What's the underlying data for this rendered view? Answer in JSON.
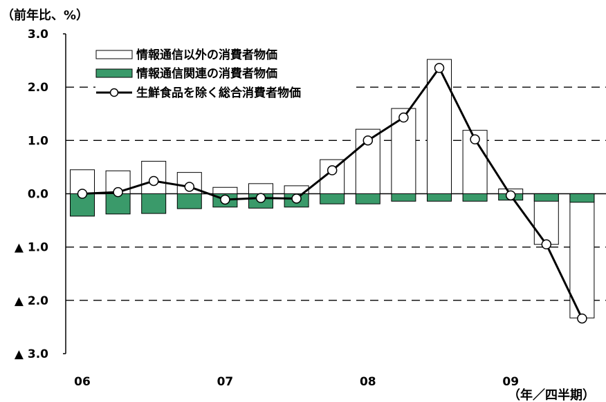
{
  "chart_data": {
    "type": "bar",
    "y_unit_label": "（前年比、%）",
    "x_unit_label": "（年／四半期）",
    "ylim": [
      -3.0,
      3.0
    ],
    "y_ticks": [
      {
        "value": 3.0,
        "label": "3.0"
      },
      {
        "value": 2.0,
        "label": "2.0"
      },
      {
        "value": 1.0,
        "label": "1.0"
      },
      {
        "value": 0.0,
        "label": "0.0"
      },
      {
        "value": -1.0,
        "label": "▲ 1.0"
      },
      {
        "value": -2.0,
        "label": "▲ 2.0"
      },
      {
        "value": -3.0,
        "label": "▲ 3.0"
      }
    ],
    "grid": "horizontal-dashed",
    "legend_position": "top-left",
    "year_labels": [
      {
        "label": "06",
        "quarter_index": 0
      },
      {
        "label": "07",
        "quarter_index": 4
      },
      {
        "label": "08",
        "quarter_index": 8
      },
      {
        "label": "09",
        "quarter_index": 12
      }
    ],
    "x": [
      "06Q1",
      "06Q2",
      "06Q3",
      "06Q4",
      "07Q1",
      "07Q2",
      "07Q3",
      "07Q4",
      "08Q1",
      "08Q2",
      "08Q3",
      "08Q4",
      "09Q1",
      "09Q2",
      "09Q3"
    ],
    "series": [
      {
        "name": "情報通信以外の消費者物価",
        "kind": "bar",
        "fill": "#ffffff",
        "stroke": "#000000",
        "values": [
          0.45,
          0.43,
          0.61,
          0.4,
          0.12,
          0.19,
          0.15,
          0.64,
          1.21,
          1.6,
          2.52,
          1.19,
          0.09,
          -0.95,
          -2.33
        ]
      },
      {
        "name": "情報通信関連の消費者物価",
        "kind": "bar",
        "fill": "#3a9a6a",
        "stroke": "#000000",
        "values": [
          -0.42,
          -0.38,
          -0.37,
          -0.28,
          -0.25,
          -0.27,
          -0.25,
          -0.19,
          -0.19,
          -0.14,
          -0.14,
          -0.14,
          -0.12,
          -0.14,
          -0.16
        ]
      },
      {
        "name": "生鮮食品を除く総合消費者物価",
        "kind": "line",
        "stroke": "#000000",
        "marker_fill": "#ffffff",
        "values": [
          0.0,
          0.03,
          0.24,
          0.13,
          -0.11,
          -0.08,
          -0.09,
          0.44,
          1.0,
          1.43,
          2.36,
          1.02,
          -0.03,
          -0.95,
          -2.34
        ]
      }
    ]
  }
}
